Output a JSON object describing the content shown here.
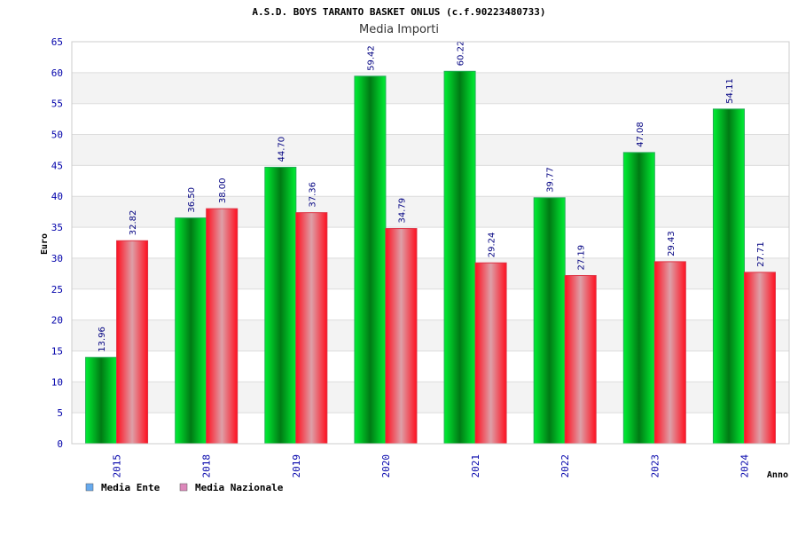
{
  "chart_data": {
    "type": "bar",
    "title": "A.S.D. BOYS TARANTO BASKET ONLUS (c.f.90223480733)",
    "subtitle": "Media Importi",
    "xlabel": "Anno",
    "ylabel": "Euro",
    "categories": [
      "2015",
      "2018",
      "2019",
      "2020",
      "2021",
      "2022",
      "2023",
      "2024"
    ],
    "series": [
      {
        "name": "Media Ente",
        "values": [
          13.96,
          36.5,
          44.7,
          59.42,
          60.22,
          39.77,
          47.08,
          54.11
        ],
        "labels": [
          "13.96",
          "36.50",
          "44.70",
          "59.42",
          "60.22",
          "39.77",
          "47.08",
          "54.11"
        ],
        "color": "#00cc33"
      },
      {
        "name": "Media Nazionale",
        "values": [
          32.82,
          38.0,
          37.36,
          34.79,
          29.24,
          27.19,
          29.43,
          27.71
        ],
        "labels": [
          "32.82",
          "38.00",
          "37.36",
          "34.79",
          "29.24",
          "27.19",
          "29.43",
          "27.71"
        ],
        "color": "#ee1133"
      }
    ],
    "ylim": [
      0,
      65
    ],
    "yticks": [
      "0",
      "5",
      "10",
      "15",
      "20",
      "25",
      "30",
      "35",
      "40",
      "45",
      "50",
      "55",
      "60",
      "65"
    ],
    "grid": true,
    "legend_position": "bottom-left",
    "legend_colors": [
      "#66aaee",
      "#dd88bb"
    ]
  }
}
